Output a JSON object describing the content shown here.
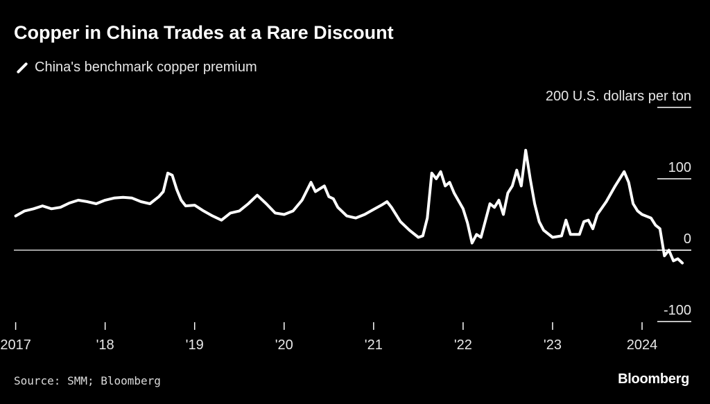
{
  "title": "Copper in China Trades at a Rare Discount",
  "legend_label": "China's benchmark copper premium",
  "source": "Source: SMM; Bloomberg",
  "brand": "Bloomberg",
  "colors": {
    "background": "#000000",
    "line": "#ffffff",
    "grid": "#ffffff",
    "text": "#e8e8e8"
  },
  "chart_data": {
    "type": "line",
    "title": "Copper in China Trades at a Rare Discount",
    "series": [
      {
        "name": "China's benchmark copper premium",
        "x": [
          2017.0,
          2017.1,
          2017.2,
          2017.3,
          2017.4,
          2017.5,
          2017.6,
          2017.7,
          2017.8,
          2017.9,
          2018.0,
          2018.1,
          2018.2,
          2018.3,
          2018.4,
          2018.5,
          2018.6,
          2018.65,
          2018.7,
          2018.75,
          2018.8,
          2018.85,
          2018.9,
          2019.0,
          2019.1,
          2019.2,
          2019.3,
          2019.4,
          2019.5,
          2019.6,
          2019.7,
          2019.8,
          2019.9,
          2020.0,
          2020.1,
          2020.2,
          2020.3,
          2020.35,
          2020.45,
          2020.5,
          2020.55,
          2020.6,
          2020.7,
          2020.8,
          2020.9,
          2021.0,
          2021.1,
          2021.15,
          2021.2,
          2021.3,
          2021.4,
          2021.5,
          2021.55,
          2021.6,
          2021.65,
          2021.7,
          2021.75,
          2021.8,
          2021.85,
          2021.9,
          2022.0,
          2022.05,
          2022.1,
          2022.15,
          2022.2,
          2022.3,
          2022.35,
          2022.4,
          2022.45,
          2022.5,
          2022.55,
          2022.6,
          2022.65,
          2022.7,
          2022.75,
          2022.8,
          2022.85,
          2022.9,
          2023.0,
          2023.1,
          2023.15,
          2023.2,
          2023.3,
          2023.35,
          2023.4,
          2023.45,
          2023.5,
          2023.6,
          2023.7,
          2023.8,
          2023.85,
          2023.9,
          2023.95,
          2024.0,
          2024.1,
          2024.15,
          2024.2,
          2024.25,
          2024.3,
          2024.35,
          2024.4,
          2024.45
        ],
        "y": [
          48,
          55,
          58,
          62,
          58,
          60,
          66,
          70,
          68,
          65,
          70,
          73,
          74,
          73,
          68,
          65,
          75,
          82,
          108,
          105,
          85,
          70,
          62,
          63,
          55,
          48,
          42,
          52,
          55,
          65,
          77,
          65,
          52,
          50,
          55,
          70,
          95,
          82,
          90,
          75,
          72,
          60,
          48,
          45,
          50,
          57,
          64,
          68,
          60,
          40,
          28,
          18,
          20,
          45,
          108,
          100,
          110,
          90,
          95,
          80,
          58,
          38,
          10,
          22,
          18,
          65,
          60,
          70,
          50,
          80,
          90,
          112,
          90,
          140,
          100,
          65,
          40,
          28,
          18,
          20,
          42,
          22,
          22,
          40,
          42,
          30,
          50,
          68,
          90,
          110,
          95,
          65,
          55,
          50,
          45,
          35,
          30,
          -8,
          0,
          -15,
          -12,
          -18
        ]
      }
    ],
    "x_ticks": [
      2017,
      2018,
      2019,
      2020,
      2021,
      2022,
      2023,
      2024
    ],
    "x_tick_labels": [
      "2017",
      "'18",
      "'19",
      "'20",
      "'21",
      "'22",
      "'23",
      "2024"
    ],
    "y_ticks": [
      200,
      100,
      0,
      -100
    ],
    "y_tick_labels": [
      "200 U.S. dollars per ton",
      "100",
      "0",
      "-100"
    ],
    "xlim": [
      2016.98,
      2024.55
    ],
    "ylim": [
      -100,
      200
    ],
    "xlabel": "",
    "ylabel": "U.S. dollars per ton",
    "zero_line": true
  }
}
